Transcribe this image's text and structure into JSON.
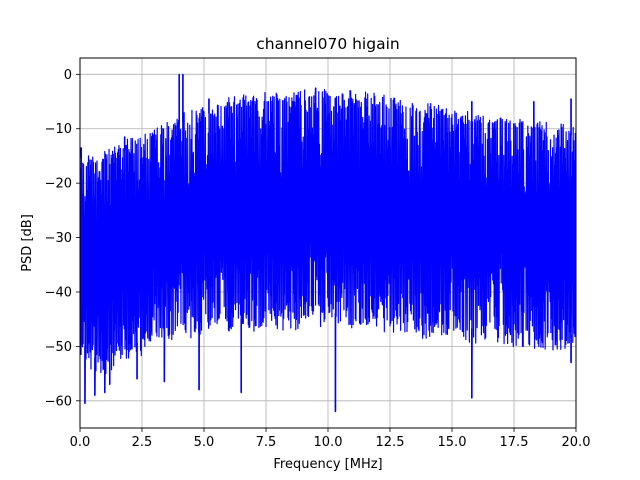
{
  "chart_data": {
    "type": "line",
    "title": "channel070 higain",
    "xlabel": "Frequency [MHz]",
    "ylabel": "PSD [dB]",
    "xlim": [
      0,
      20
    ],
    "ylim": [
      -65,
      3
    ],
    "xticks": [
      0,
      2.5,
      5,
      7.5,
      10,
      12.5,
      15,
      17.5,
      20
    ],
    "xtick_labels": [
      "0.0",
      "2.5",
      "5.0",
      "7.5",
      "10.0",
      "12.5",
      "15.0",
      "17.5",
      "20.0"
    ],
    "yticks": [
      0,
      -10,
      -20,
      -30,
      -40,
      -50,
      -60
    ],
    "ytick_labels": [
      "0",
      "−10",
      "−20",
      "−30",
      "−40",
      "−50",
      "−60"
    ],
    "grid": true,
    "legend": "none",
    "colors": {
      "series": "#0000ff",
      "grid": "#b0b0b0",
      "axes": "#000000"
    },
    "series": [
      {
        "color": "#0000ff",
        "upper_envelope": {
          "x": [
            0,
            0.5,
            1,
            1.5,
            2,
            2.5,
            3,
            3.5,
            4,
            4.5,
            5,
            5.5,
            6,
            6.5,
            7,
            7.5,
            8,
            8.5,
            9,
            9.5,
            10,
            10.5,
            11,
            11.5,
            12,
            12.5,
            13,
            13.5,
            14,
            14.5,
            15,
            15.5,
            16,
            16.5,
            17,
            17.5,
            18,
            18.5,
            19,
            19.5,
            20
          ],
          "y": [
            -14,
            -16,
            -14.5,
            -13.5,
            -12.5,
            -11.5,
            -10.5,
            -9.5,
            -8,
            -7,
            -6.5,
            -5.5,
            -5,
            -4.5,
            -4.2,
            -4,
            -3.8,
            -3.7,
            -3.6,
            -3.6,
            -3.6,
            -3.7,
            -3.8,
            -4,
            -4.3,
            -4.6,
            -5,
            -5.5,
            -6,
            -6.5,
            -7,
            -7.3,
            -7.7,
            -8,
            -8.3,
            -8.6,
            -8.9,
            -9.2,
            -9.6,
            -9.9,
            -10.2
          ]
        },
        "lower_envelope": {
          "x": [
            0,
            0.5,
            1,
            1.5,
            2,
            2.5,
            3,
            3.5,
            4,
            4.5,
            5,
            5.5,
            6,
            6.5,
            7,
            7.5,
            8,
            8.5,
            9,
            9.5,
            10,
            10.5,
            11,
            11.5,
            12,
            12.5,
            13,
            13.5,
            14,
            14.5,
            15,
            15.5,
            16,
            16.5,
            17,
            17.5,
            18,
            18.5,
            19,
            19.5,
            20
          ],
          "y": [
            -50,
            -53,
            -54,
            -52,
            -51,
            -50,
            -49,
            -48,
            -47,
            -47,
            -46,
            -46,
            -46,
            -46,
            -46,
            -45.5,
            -45.5,
            -45.5,
            -45,
            -45,
            -45,
            -45,
            -45.5,
            -46,
            -46,
            -46,
            -46.5,
            -47,
            -47,
            -47,
            -47.5,
            -47.5,
            -48,
            -48,
            -48,
            -48.5,
            -48.5,
            -49,
            -49,
            -49,
            -49
          ]
        },
        "peaks": [
          {
            "x": 4.0,
            "y": 0
          },
          {
            "x": 4.15,
            "y": 0
          },
          {
            "x": 0.05,
            "y": -13.5
          },
          {
            "x": 19.8,
            "y": -4.5
          },
          {
            "x": 15.8,
            "y": -5
          },
          {
            "x": 18.3,
            "y": -5
          },
          {
            "x": 9.5,
            "y": -2.5
          },
          {
            "x": 5.2,
            "y": -4.5
          },
          {
            "x": 1.8,
            "y": -11.5
          }
        ],
        "dips": [
          {
            "x": 0.2,
            "y": -60.5
          },
          {
            "x": 0.6,
            "y": -59
          },
          {
            "x": 1.0,
            "y": -58.5
          },
          {
            "x": 1.2,
            "y": -57
          },
          {
            "x": 2.3,
            "y": -56
          },
          {
            "x": 3.4,
            "y": -56.5
          },
          {
            "x": 4.8,
            "y": -58
          },
          {
            "x": 6.5,
            "y": -58.5
          },
          {
            "x": 10.3,
            "y": -62
          },
          {
            "x": 15.8,
            "y": -59.5
          },
          {
            "x": 19.8,
            "y": -53
          }
        ]
      }
    ]
  }
}
